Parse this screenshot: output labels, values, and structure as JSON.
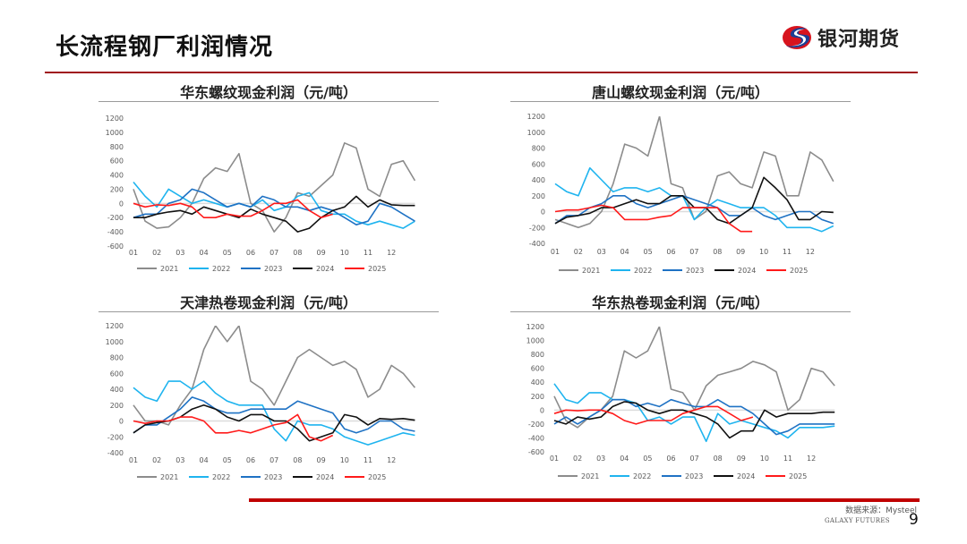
{
  "slide": {
    "title": "长流程钢厂利润情况",
    "logo_text": "银河期货",
    "source": "数据来源：Mysteel",
    "brand": "GALAXY FUTURES",
    "page_number": "9"
  },
  "colors": {
    "2021": "#8c8c8c",
    "2022": "#1fb4ef",
    "2023": "#1f72c4",
    "2024": "#111111",
    "2025": "#ff1a1a",
    "accent": "#c00000"
  },
  "chart_data": [
    {
      "type": "line",
      "title": "华东螺纹现金利润（元/吨）",
      "xlabel": "",
      "ylabel": "",
      "x_ticks": [
        "01",
        "02",
        "03",
        "04",
        "05",
        "06",
        "07",
        "08",
        "09",
        "10",
        "11",
        "12"
      ],
      "x": [
        1,
        1.5,
        2,
        2.5,
        3,
        3.5,
        4,
        4.5,
        5,
        5.5,
        6,
        6.5,
        7,
        7.5,
        8,
        8.5,
        9,
        9.5,
        10,
        10.5,
        11,
        11.5,
        12,
        12.5,
        13
      ],
      "ylim": [
        -600,
        1200
      ],
      "y_ticks": [
        -600,
        -400,
        -200,
        0,
        200,
        400,
        600,
        800,
        1000,
        1200
      ],
      "legend": "bottom",
      "series": [
        {
          "name": "2021",
          "values": [
            200,
            -250,
            -350,
            -330,
            -200,
            0,
            350,
            500,
            450,
            700,
            0,
            -100,
            -400,
            -200,
            150,
            100,
            250,
            400,
            850,
            780,
            200,
            100,
            550,
            600,
            320
          ]
        },
        {
          "name": "2022",
          "values": [
            300,
            100,
            -50,
            200,
            100,
            0,
            50,
            0,
            -50,
            0,
            -50,
            50,
            -100,
            -50,
            100,
            150,
            -100,
            -150,
            -150,
            -250,
            -300,
            -250,
            -300,
            -350,
            -250
          ]
        },
        {
          "name": "2023",
          "values": [
            -200,
            -150,
            -150,
            0,
            50,
            200,
            150,
            50,
            -50,
            0,
            -50,
            100,
            50,
            -50,
            -50,
            -100,
            -50,
            -100,
            -200,
            -300,
            -250,
            0,
            -50,
            -150,
            -250
          ]
        },
        {
          "name": "2024",
          "values": [
            -200,
            -200,
            -150,
            -120,
            -100,
            -150,
            -50,
            -100,
            -150,
            -200,
            -80,
            -150,
            -200,
            -250,
            -400,
            -350,
            -200,
            -100,
            -50,
            100,
            -50,
            50,
            -20,
            -30,
            -30
          ]
        },
        {
          "name": "2025",
          "values": [
            0,
            -50,
            -20,
            -30,
            0,
            -50,
            -200,
            -200,
            -150,
            -180,
            -180,
            -100,
            0,
            0,
            50,
            -100,
            -200,
            -150,
            null,
            null,
            null,
            null,
            null,
            null,
            null
          ]
        }
      ]
    },
    {
      "type": "line",
      "title": "唐山螺纹现金利润（元/吨）",
      "xlabel": "",
      "ylabel": "",
      "x_ticks": [
        "01",
        "02",
        "03",
        "04",
        "05",
        "06",
        "07",
        "08",
        "09",
        "10",
        "11",
        "12"
      ],
      "x": [
        1,
        1.5,
        2,
        2.5,
        3,
        3.5,
        4,
        4.5,
        5,
        5.5,
        6,
        6.5,
        7,
        7.5,
        8,
        8.5,
        9,
        9.5,
        10,
        10.5,
        11,
        11.5,
        12,
        12.5,
        13
      ],
      "ylim": [
        -400,
        1200
      ],
      "y_ticks": [
        -400,
        -200,
        0,
        200,
        400,
        600,
        800,
        1000,
        1200
      ],
      "legend": "bottom",
      "series": [
        {
          "name": "2021",
          "values": [
            -100,
            -150,
            -200,
            -150,
            0,
            350,
            850,
            800,
            700,
            1200,
            350,
            300,
            -100,
            0,
            450,
            500,
            350,
            300,
            750,
            700,
            200,
            200,
            750,
            650,
            380
          ]
        },
        {
          "name": "2022",
          "values": [
            350,
            250,
            200,
            550,
            400,
            250,
            300,
            300,
            250,
            300,
            200,
            200,
            -100,
            50,
            150,
            100,
            50,
            50,
            50,
            -50,
            -200,
            -200,
            -200,
            -250,
            -180
          ]
        },
        {
          "name": "2023",
          "values": [
            -150,
            -50,
            -50,
            50,
            100,
            200,
            200,
            100,
            50,
            100,
            150,
            200,
            150,
            100,
            50,
            -50,
            -50,
            50,
            -50,
            -100,
            -50,
            0,
            0,
            -100,
            -150
          ]
        },
        {
          "name": "2024",
          "values": [
            -150,
            -70,
            -50,
            -20,
            50,
            50,
            100,
            150,
            100,
            100,
            200,
            200,
            50,
            50,
            -100,
            -150,
            -50,
            50,
            430,
            300,
            150,
            -100,
            -100,
            0,
            -10
          ]
        },
        {
          "name": "2025",
          "values": [
            0,
            20,
            20,
            50,
            80,
            50,
            -100,
            -100,
            -100,
            -70,
            -50,
            50,
            50,
            50,
            50,
            -150,
            -250,
            -250,
            null,
            null,
            null,
            null,
            null,
            null,
            null
          ]
        }
      ]
    },
    {
      "type": "line",
      "title": "天津热卷现金利润（元/吨）",
      "xlabel": "",
      "ylabel": "",
      "x_ticks": [
        "01",
        "02",
        "03",
        "04",
        "05",
        "06",
        "07",
        "08",
        "09",
        "10",
        "11",
        "12"
      ],
      "x": [
        1,
        1.5,
        2,
        2.5,
        3,
        3.5,
        4,
        4.5,
        5,
        5.5,
        6,
        6.5,
        7,
        7.5,
        8,
        8.5,
        9,
        9.5,
        10,
        10.5,
        11,
        11.5,
        12,
        12.5,
        13
      ],
      "ylim": [
        -400,
        1200
      ],
      "y_ticks": [
        -400,
        -200,
        0,
        200,
        400,
        600,
        800,
        1000,
        1200
      ],
      "legend": "bottom",
      "series": [
        {
          "name": "2021",
          "values": [
            200,
            0,
            0,
            -50,
            200,
            400,
            900,
            1200,
            1000,
            1200,
            500,
            400,
            200,
            500,
            800,
            900,
            800,
            700,
            750,
            650,
            300,
            400,
            700,
            600,
            420
          ]
        },
        {
          "name": "2022",
          "values": [
            420,
            300,
            250,
            500,
            500,
            400,
            500,
            350,
            250,
            200,
            200,
            200,
            -100,
            -250,
            0,
            -50,
            -50,
            -100,
            -200,
            -250,
            -300,
            -250,
            -200,
            -150,
            -180
          ]
        },
        {
          "name": "2023",
          "values": [
            -150,
            -50,
            -50,
            50,
            150,
            300,
            250,
            150,
            100,
            100,
            150,
            150,
            150,
            150,
            250,
            200,
            150,
            100,
            -100,
            -150,
            -100,
            0,
            0,
            -100,
            -130
          ]
        },
        {
          "name": "2024",
          "values": [
            -150,
            -50,
            -20,
            0,
            50,
            150,
            200,
            150,
            50,
            0,
            80,
            80,
            0,
            0,
            -100,
            -250,
            -200,
            -150,
            80,
            50,
            -50,
            30,
            20,
            30,
            10
          ]
        },
        {
          "name": "2025",
          "values": [
            0,
            -30,
            0,
            0,
            50,
            50,
            0,
            -150,
            -150,
            -120,
            -150,
            -100,
            -50,
            -20,
            80,
            -200,
            -250,
            -180,
            null,
            null,
            null,
            null,
            null,
            null,
            null
          ]
        }
      ]
    },
    {
      "type": "line",
      "title": "华东热卷现金利润（元/吨）",
      "xlabel": "",
      "ylabel": "",
      "x_ticks": [
        "01",
        "02",
        "03",
        "04",
        "05",
        "06",
        "07",
        "08",
        "09",
        "10",
        "11",
        "12"
      ],
      "x": [
        1,
        1.5,
        2,
        2.5,
        3,
        3.5,
        4,
        4.5,
        5,
        5.5,
        6,
        6.5,
        7,
        7.5,
        8,
        8.5,
        9,
        9.5,
        10,
        10.5,
        11,
        11.5,
        12,
        12.5,
        13
      ],
      "ylim": [
        -600,
        1200
      ],
      "y_ticks": [
        -600,
        -400,
        -200,
        0,
        200,
        400,
        600,
        800,
        1000,
        1200
      ],
      "legend": "bottom",
      "series": [
        {
          "name": "2021",
          "values": [
            200,
            -150,
            -250,
            -100,
            0,
            200,
            850,
            750,
            850,
            1200,
            300,
            250,
            0,
            350,
            500,
            550,
            600,
            700,
            650,
            550,
            0,
            150,
            600,
            550,
            350
          ]
        },
        {
          "name": "2022",
          "values": [
            380,
            150,
            100,
            250,
            250,
            150,
            150,
            100,
            -150,
            -100,
            -200,
            -100,
            -100,
            -450,
            -50,
            -200,
            -150,
            -200,
            -250,
            -300,
            -400,
            -250,
            -250,
            -250,
            -230
          ]
        },
        {
          "name": "2023",
          "values": [
            -200,
            -100,
            -200,
            -100,
            0,
            150,
            150,
            50,
            100,
            50,
            150,
            100,
            50,
            50,
            150,
            50,
            50,
            -50,
            -200,
            -350,
            -300,
            -200,
            -200,
            -200,
            -200
          ]
        },
        {
          "name": "2024",
          "values": [
            -150,
            -200,
            -100,
            -130,
            -100,
            50,
            120,
            100,
            0,
            -50,
            0,
            0,
            -50,
            -100,
            -200,
            -400,
            -300,
            -300,
            0,
            -100,
            -50,
            -50,
            -50,
            -30,
            -30
          ]
        },
        {
          "name": "2025",
          "values": [
            -50,
            0,
            -10,
            0,
            0,
            -50,
            -150,
            -200,
            -150,
            -150,
            -150,
            -50,
            0,
            50,
            50,
            -50,
            -150,
            -100,
            null,
            null,
            null,
            null,
            null,
            null,
            null
          ]
        }
      ]
    }
  ]
}
